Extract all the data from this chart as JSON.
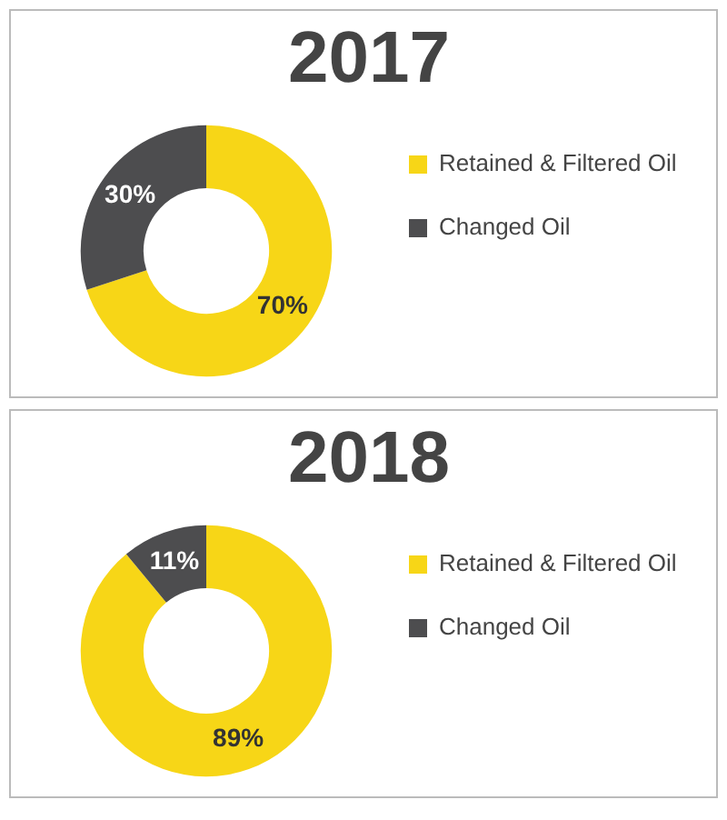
{
  "chart_data": [
    {
      "type": "donut",
      "title": "2017",
      "categories": [
        "Retained & Filtered Oil",
        "Changed Oil"
      ],
      "values": [
        70,
        30
      ],
      "colors": [
        "#f7d617",
        "#4d4d4f"
      ],
      "value_labels": [
        "70%",
        "30%"
      ],
      "legend": "right"
    },
    {
      "type": "donut",
      "title": "2018",
      "categories": [
        "Retained & Filtered Oil",
        "Changed Oil"
      ],
      "values": [
        89,
        11
      ],
      "colors": [
        "#f7d617",
        "#4d4d4f"
      ],
      "value_labels": [
        "89%",
        "11%"
      ],
      "legend": "right"
    }
  ]
}
